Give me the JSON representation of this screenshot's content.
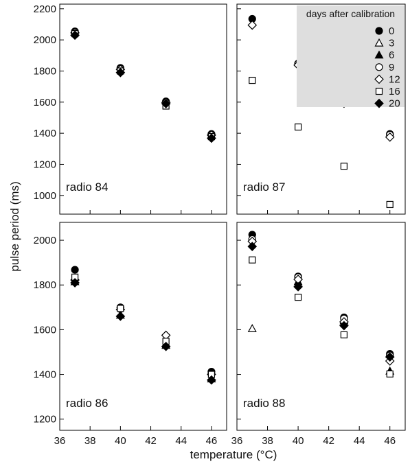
{
  "chart_data": {
    "type": "scatter",
    "xlabel": "temperature (°C)",
    "ylabel": "pulse period (ms)",
    "xlim": [
      36,
      47
    ],
    "x_ticks": [
      36,
      38,
      40,
      42,
      44,
      46
    ],
    "legend": {
      "title": "days after calibration",
      "placement": "top-right",
      "entries": [
        {
          "label": "0",
          "marker": "circle",
          "filled": true
        },
        {
          "label": "3",
          "marker": "triangle",
          "filled": false
        },
        {
          "label": "6",
          "marker": "triangle",
          "filled": true
        },
        {
          "label": "9",
          "marker": "circle",
          "filled": false
        },
        {
          "label": "12",
          "marker": "diamond",
          "filled": false
        },
        {
          "label": "16",
          "marker": "square",
          "filled": false
        },
        {
          "label": "20",
          "marker": "diamond",
          "filled": true
        }
      ]
    },
    "panels": [
      {
        "label": "radio 84",
        "ylim": [
          880,
          2230
        ],
        "y_ticks": [
          1000,
          1200,
          1400,
          1600,
          1800,
          2000,
          2200
        ],
        "series": [
          {
            "name": "0",
            "points": [
              [
                37,
                2055
              ],
              [
                40,
                1820
              ],
              [
                43,
                1605
              ],
              [
                46,
                1395
              ]
            ]
          },
          {
            "name": "9",
            "points": [
              [
                37,
                2050
              ],
              [
                40,
                1815
              ],
              [
                43,
                1600
              ],
              [
                46,
                1392
              ]
            ]
          },
          {
            "name": "12",
            "points": [
              [
                37,
                2045
              ],
              [
                40,
                1810
              ],
              [
                43,
                1598
              ],
              [
                46,
                1388
              ]
            ]
          },
          {
            "name": "16",
            "points": [
              [
                37,
                2040
              ],
              [
                40,
                1800
              ],
              [
                43,
                1575
              ],
              [
                46,
                1378
              ]
            ]
          },
          {
            "name": "20",
            "points": [
              [
                37,
                2030
              ],
              [
                40,
                1790
              ],
              [
                43,
                1590
              ],
              [
                46,
                1368
              ]
            ]
          }
        ]
      },
      {
        "label": "radio 87",
        "ylim": [
          880,
          2230
        ],
        "y_ticks": [
          1000,
          1200,
          1400,
          1600,
          1800,
          2000,
          2200
        ],
        "series": [
          {
            "name": "0",
            "points": [
              [
                37,
                2135
              ],
              [
                40,
                1848
              ],
              [
                43,
                1602
              ],
              [
                46,
                1395
              ]
            ]
          },
          {
            "name": "9",
            "points": [
              [
                40,
                1845
              ],
              [
                43,
                1600
              ],
              [
                46,
                1390
              ]
            ]
          },
          {
            "name": "12",
            "points": [
              [
                37,
                2095
              ],
              [
                40,
                1838
              ],
              [
                43,
                1593
              ],
              [
                46,
                1375
              ]
            ]
          },
          {
            "name": "16",
            "points": [
              [
                37,
                1740
              ],
              [
                40,
                1440
              ],
              [
                43,
                1188
              ],
              [
                46,
                942
              ]
            ]
          }
        ]
      },
      {
        "label": "radio 86",
        "ylim": [
          1150,
          2080
        ],
        "y_ticks": [
          1200,
          1400,
          1600,
          1800,
          2000
        ],
        "series": [
          {
            "name": "0",
            "points": [
              [
                37,
                1868
              ],
              [
                40,
                1700
              ],
              [
                46,
                1412
              ]
            ]
          },
          {
            "name": "6",
            "points": [
              [
                37,
                1815
              ],
              [
                40,
                1665
              ],
              [
                43,
                1530
              ],
              [
                46,
                1380
              ]
            ]
          },
          {
            "name": "9",
            "points": [
              [
                40,
                1698
              ]
            ]
          },
          {
            "name": "12",
            "points": [
              [
                37,
                1822
              ],
              [
                40,
                1690
              ],
              [
                43,
                1575
              ],
              [
                46,
                1400
              ]
            ]
          },
          {
            "name": "16",
            "points": [
              [
                37,
                1835
              ],
              [
                40,
                1695
              ],
              [
                43,
                1548
              ],
              [
                46,
                1400
              ]
            ]
          },
          {
            "name": "20",
            "points": [
              [
                37,
                1810
              ],
              [
                40,
                1660
              ],
              [
                43,
                1525
              ],
              [
                46,
                1375
              ]
            ]
          }
        ]
      },
      {
        "label": "radio 88",
        "ylim": [
          1150,
          2080
        ],
        "y_ticks": [
          1200,
          1400,
          1600,
          1800,
          2000
        ],
        "series": [
          {
            "name": "0",
            "points": [
              [
                37,
                2025
              ],
              [
                40,
                1838
              ],
              [
                43,
                1655
              ],
              [
                46,
                1492
              ]
            ]
          },
          {
            "name": "3",
            "points": [
              [
                37,
                1605
              ]
            ]
          },
          {
            "name": "6",
            "points": [
              [
                37,
                2010
              ],
              [
                40,
                1815
              ],
              [
                43,
                1640
              ],
              [
                46,
                1415
              ]
            ]
          },
          {
            "name": "9",
            "points": [
              [
                37,
                2005
              ],
              [
                40,
                1835
              ],
              [
                43,
                1650
              ],
              [
                46,
                1485
              ]
            ]
          },
          {
            "name": "12",
            "points": [
              [
                37,
                1995
              ],
              [
                40,
                1825
              ],
              [
                43,
                1635
              ],
              [
                46,
                1460
              ]
            ]
          },
          {
            "name": "16",
            "points": [
              [
                37,
                1912
              ],
              [
                40,
                1745
              ],
              [
                43,
                1577
              ],
              [
                46,
                1402
              ]
            ]
          },
          {
            "name": "20",
            "points": [
              [
                37,
                1972
              ],
              [
                40,
                1792
              ],
              [
                43,
                1618
              ],
              [
                46,
                1478
              ]
            ]
          }
        ]
      }
    ]
  }
}
